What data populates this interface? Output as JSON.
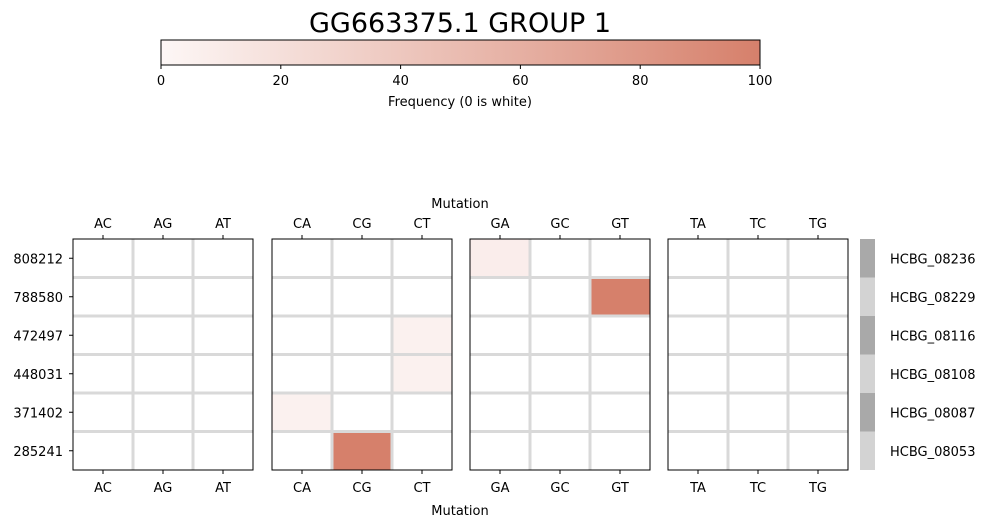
{
  "chart_data": {
    "type": "heatmap",
    "title": "GG663375.1 GROUP 1",
    "colorbar": {
      "label": "Frequency (0 is white)",
      "range": [
        0,
        100
      ],
      "ticks": [
        "0",
        "20",
        "40",
        "60",
        "80",
        "100"
      ],
      "color_low": "#fdf7f6",
      "color_high": "#d6806b"
    },
    "xlabel": "Mutation",
    "groups": [
      {
        "columns": [
          "AC",
          "AG",
          "AT"
        ]
      },
      {
        "columns": [
          "CA",
          "CG",
          "CT"
        ]
      },
      {
        "columns": [
          "GA",
          "GC",
          "GT"
        ]
      },
      {
        "columns": [
          "TA",
          "TC",
          "TG"
        ]
      }
    ],
    "rows": [
      "808212",
      "788580",
      "472497",
      "448031",
      "371402",
      "285241"
    ],
    "row_groups": [
      "HCBG_08236",
      "HCBG_08229",
      "HCBG_08116",
      "HCBG_08108",
      "HCBG_08087",
      "HCBG_08053"
    ],
    "row_group_colors": [
      "#a9a9a9",
      "#d3d3d3",
      "#a9a9a9",
      "#d3d3d3",
      "#a9a9a9",
      "#d3d3d3"
    ],
    "cells": [
      {
        "row": "808212",
        "mutation": "GA",
        "value": 8
      },
      {
        "row": "788580",
        "mutation": "GT",
        "value": 100
      },
      {
        "row": "472497",
        "mutation": "CT",
        "value": 5
      },
      {
        "row": "448031",
        "mutation": "CT",
        "value": 5
      },
      {
        "row": "371402",
        "mutation": "CA",
        "value": 5
      },
      {
        "row": "285241",
        "mutation": "CG",
        "value": 100
      }
    ]
  }
}
